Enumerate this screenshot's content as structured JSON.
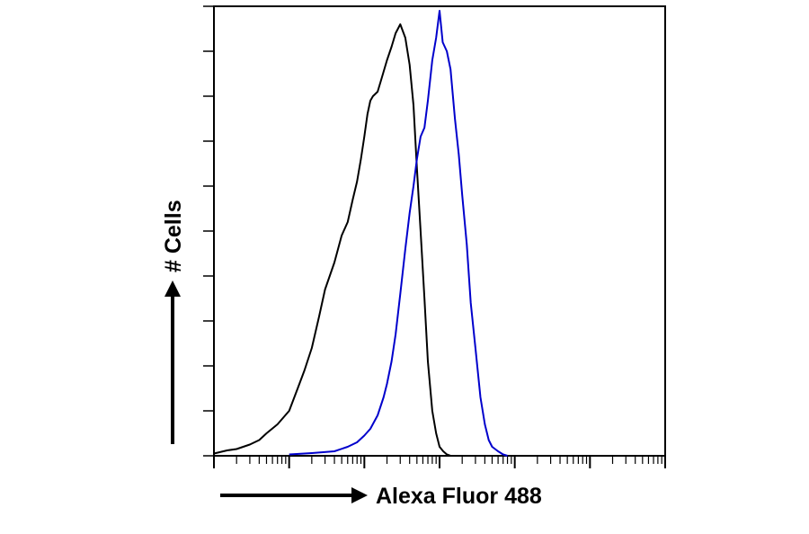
{
  "chart_data": {
    "type": "line",
    "title": "",
    "xlabel": "Alexa Fluor 488",
    "ylabel": "# Cells",
    "x_scale": "log",
    "xlim": [
      1,
      1000000
    ],
    "ylim": [
      0,
      100
    ],
    "x_major_ticks": [
      1,
      10,
      100,
      1000,
      10000,
      100000,
      1000000
    ],
    "y_tick_count": 11,
    "grid": false,
    "legend": "none",
    "series": [
      {
        "color": "#000000",
        "x": [
          1,
          1.5,
          2,
          3,
          4,
          5,
          7,
          10,
          13,
          16,
          20,
          25,
          30,
          40,
          50,
          60,
          70,
          80,
          90,
          100,
          110,
          120,
          130,
          150,
          170,
          200,
          230,
          260,
          300,
          350,
          400,
          450,
          500,
          560,
          630,
          700,
          800,
          900,
          1000,
          1120,
          1250,
          1400
        ],
        "y": [
          0.5,
          1.2,
          1.5,
          2.5,
          3.5,
          5,
          7,
          10,
          15,
          19,
          24,
          31,
          37,
          43,
          49,
          52,
          57,
          61,
          66,
          71,
          76,
          79,
          80,
          81,
          84,
          88,
          91,
          94,
          96,
          93,
          87,
          78,
          64,
          50,
          35,
          21,
          10,
          5,
          2,
          1,
          0.3,
          0
        ]
      },
      {
        "color": "#0000cc",
        "x": [
          10,
          20,
          40,
          60,
          80,
          100,
          120,
          150,
          180,
          200,
          230,
          260,
          300,
          350,
          400,
          450,
          500,
          560,
          630,
          700,
          800,
          900,
          1000,
          1100,
          1250,
          1400,
          1600,
          1800,
          2000,
          2300,
          2600,
          3000,
          3500,
          4000,
          4500,
          5000,
          6000,
          7000,
          8000
        ],
        "y": [
          0.3,
          0.6,
          1,
          2,
          3,
          4.5,
          6,
          9,
          13,
          16,
          21,
          27,
          36,
          46,
          54,
          60,
          66,
          71,
          73,
          79,
          88,
          93,
          99,
          92,
          90,
          86,
          75,
          67,
          58,
          47,
          34,
          24,
          13,
          7,
          3.5,
          2,
          1,
          0.3,
          0
        ]
      }
    ]
  }
}
